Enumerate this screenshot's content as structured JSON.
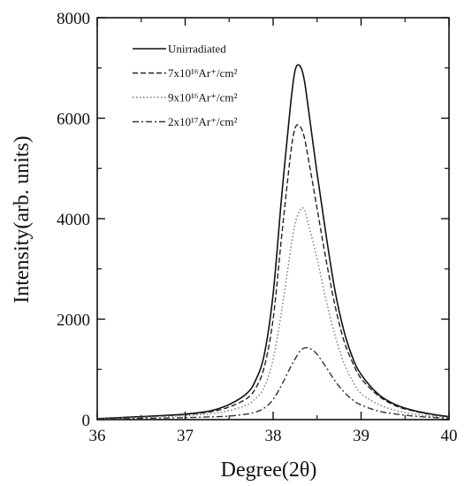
{
  "chart_data": {
    "type": "line",
    "xlabel": "Degree(2θ)",
    "ylabel": "Intensity(arb. units)",
    "xlim": [
      36,
      40
    ],
    "ylim": [
      0,
      8000
    ],
    "xticks": [
      36,
      37,
      38,
      39,
      40
    ],
    "yticks": [
      0,
      2000,
      4000,
      6000,
      8000
    ],
    "grid": false,
    "legend_position": "top-left",
    "series": [
      {
        "name": "Unirradiated",
        "style": "solid",
        "color": "#111111",
        "x": [
          36.0,
          36.5,
          37.0,
          37.3,
          37.5,
          37.7,
          37.8,
          37.9,
          38.0,
          38.1,
          38.2,
          38.25,
          38.3,
          38.35,
          38.4,
          38.5,
          38.6,
          38.7,
          38.8,
          38.9,
          39.0,
          39.2,
          39.4,
          39.6,
          39.8,
          40.0
        ],
        "y": [
          20,
          60,
          110,
          180,
          300,
          520,
          780,
          1300,
          2500,
          4500,
          6300,
          6950,
          7050,
          6800,
          6200,
          4900,
          3700,
          2600,
          1800,
          1250,
          900,
          500,
          290,
          180,
          110,
          60
        ]
      },
      {
        "name": "7x10¹⁶Ar⁺/cm²",
        "style": "dashed",
        "color": "#222222",
        "x": [
          36.0,
          36.5,
          37.0,
          37.3,
          37.5,
          37.7,
          37.8,
          37.9,
          38.0,
          38.1,
          38.2,
          38.25,
          38.3,
          38.35,
          38.4,
          38.5,
          38.6,
          38.7,
          38.8,
          38.9,
          39.0,
          39.2,
          39.4,
          39.6,
          39.8,
          40.0
        ],
        "y": [
          20,
          55,
          100,
          160,
          250,
          420,
          620,
          1050,
          2000,
          3700,
          5300,
          5800,
          5850,
          5650,
          5200,
          4200,
          3200,
          2300,
          1600,
          1150,
          820,
          470,
          270,
          170,
          100,
          55
        ]
      },
      {
        "name": "9x10¹⁶Ar⁺/cm²",
        "style": "dotted",
        "color": "#777777",
        "x": [
          36.0,
          36.5,
          37.0,
          37.3,
          37.5,
          37.7,
          37.8,
          37.9,
          38.0,
          38.1,
          38.2,
          38.25,
          38.3,
          38.35,
          38.4,
          38.5,
          38.6,
          38.7,
          38.8,
          38.9,
          39.0,
          39.2,
          39.4,
          39.6,
          39.8,
          40.0
        ],
        "y": [
          15,
          45,
          80,
          120,
          180,
          290,
          420,
          650,
          1200,
          2200,
          3400,
          3900,
          4150,
          4200,
          3900,
          3200,
          2400,
          1700,
          1150,
          780,
          520,
          300,
          180,
          110,
          70,
          40
        ]
      },
      {
        "name": "2x10¹⁷Ar⁺/cm²",
        "style": "dash-dot",
        "color": "#333333",
        "x": [
          36.0,
          36.5,
          37.0,
          37.3,
          37.5,
          37.7,
          37.8,
          37.9,
          38.0,
          38.1,
          38.2,
          38.3,
          38.35,
          38.4,
          38.45,
          38.5,
          38.6,
          38.7,
          38.8,
          38.9,
          39.0,
          39.2,
          39.4,
          39.6,
          39.8,
          40.0
        ],
        "y": [
          10,
          25,
          40,
          55,
          70,
          110,
          150,
          230,
          400,
          700,
          1050,
          1350,
          1420,
          1430,
          1380,
          1300,
          1050,
          780,
          560,
          400,
          290,
          170,
          110,
          70,
          45,
          25
        ]
      }
    ]
  }
}
